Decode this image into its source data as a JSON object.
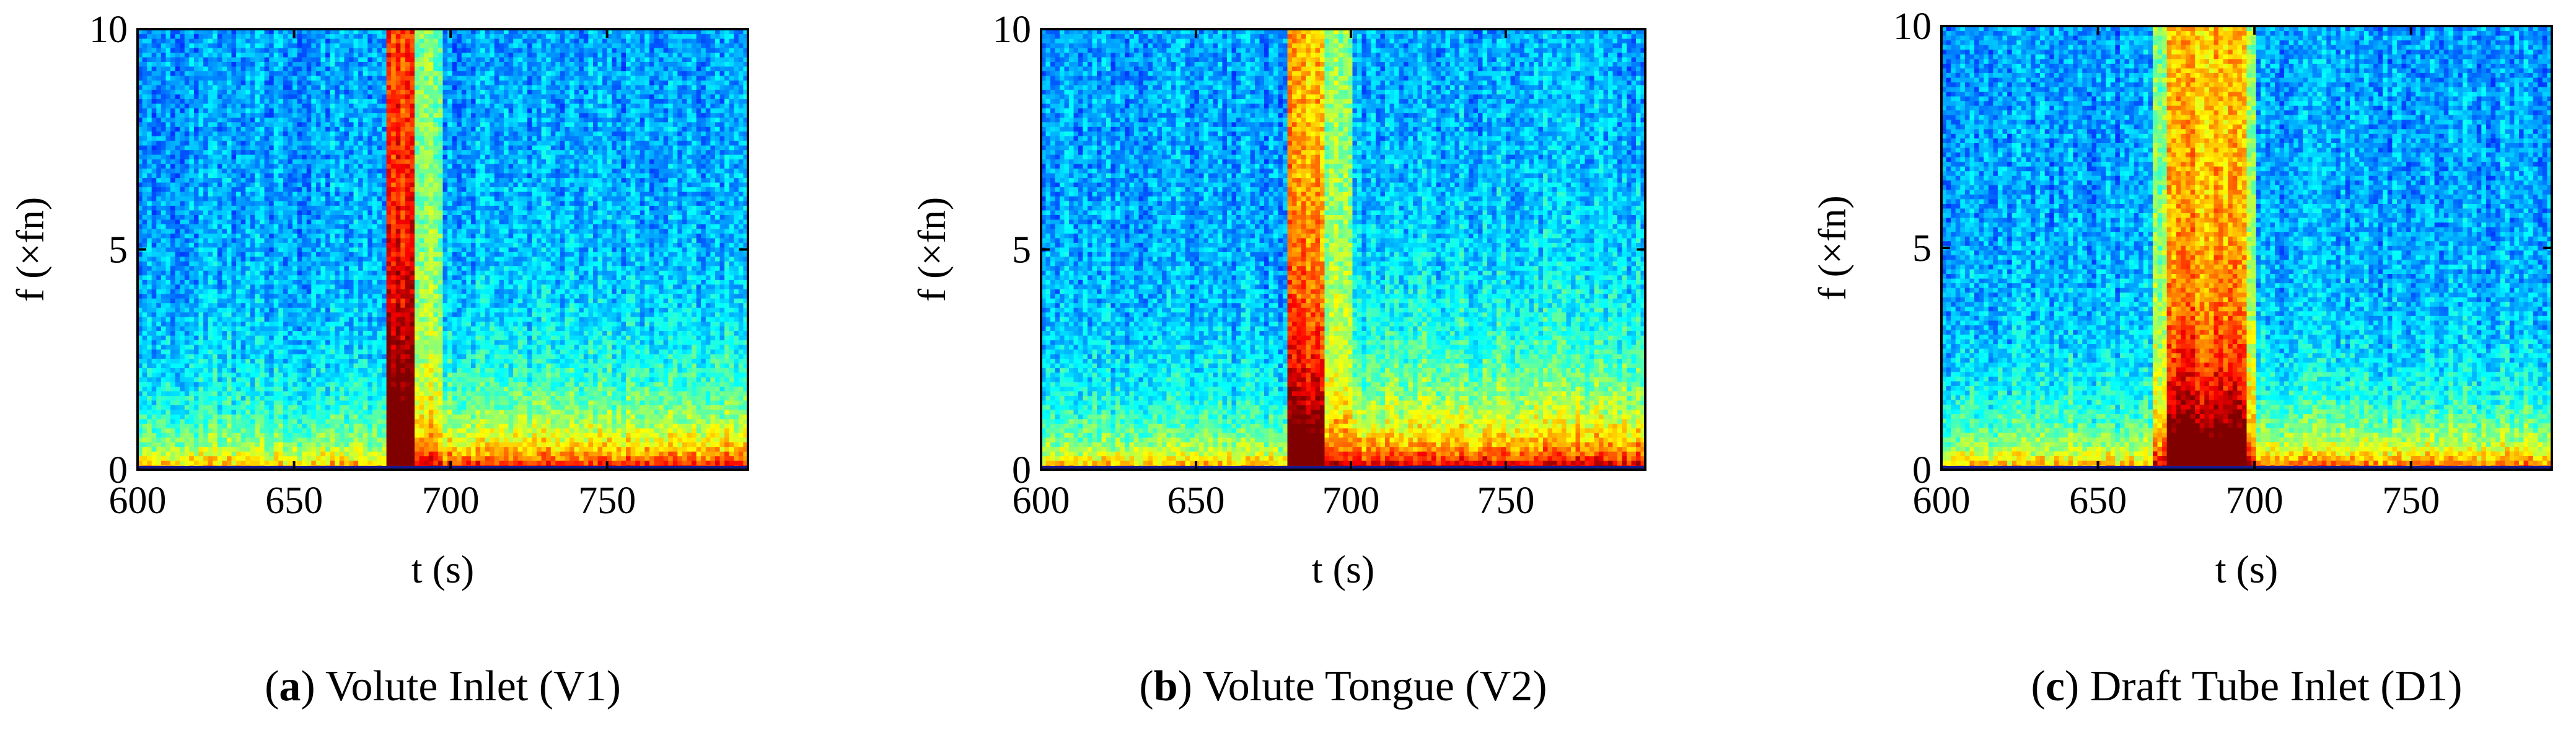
{
  "colors": {
    "colormap": "jet",
    "axis": "#000000",
    "background": "#ffffff"
  },
  "chart_data": [
    {
      "type": "heatmap",
      "panel": "a",
      "caption_letter": "a",
      "caption_text": ") Volute Inlet (V1)",
      "caption_open": "(",
      "xlabel": "t (s)",
      "ylabel": "f (×fn)",
      "xlim": [
        600,
        795
      ],
      "ylim": [
        0,
        10
      ],
      "xticks": [
        600,
        650,
        700,
        750
      ],
      "yticks": [
        0,
        5,
        10
      ],
      "grid": false,
      "transient_band": {
        "start": 680,
        "end": 698,
        "peak_start": 680,
        "peak_end": 688
      },
      "note_broadband_post_transient": "elevated energy below ~2×fn for t > 700 s"
    },
    {
      "type": "heatmap",
      "panel": "b",
      "caption_letter": "b",
      "caption_text": ") Volute Tongue (V2)",
      "caption_open": "(",
      "xlabel": "t (s)",
      "ylabel": "f (×fn)",
      "xlim": [
        600,
        795
      ],
      "ylim": [
        0,
        10
      ],
      "xticks": [
        600,
        650,
        700,
        750
      ],
      "yticks": [
        0,
        5,
        10
      ],
      "grid": false,
      "transient_band": {
        "start": 679,
        "end": 700,
        "peak_start": 680,
        "peak_end": 692
      },
      "note_broadband_post_transient": "elevated energy below ~4×fn for t > 700 s"
    },
    {
      "type": "heatmap",
      "panel": "c",
      "caption_letter": "c",
      "caption_text": ") Draft Tube Inlet (D1)",
      "caption_open": "(",
      "xlabel": "t (s)",
      "ylabel": "f (×fn)",
      "xlim": [
        600,
        795
      ],
      "ylim": [
        0,
        10
      ],
      "xticks": [
        600,
        650,
        700,
        750
      ],
      "yticks": [
        0,
        5,
        10
      ],
      "grid": false,
      "transient_band": {
        "start": 668,
        "end": 700,
        "peak_start": 672,
        "peak_end": 697
      },
      "note_broadband_post_transient": "weak energy below ~1×fn for t > 700 s"
    }
  ]
}
